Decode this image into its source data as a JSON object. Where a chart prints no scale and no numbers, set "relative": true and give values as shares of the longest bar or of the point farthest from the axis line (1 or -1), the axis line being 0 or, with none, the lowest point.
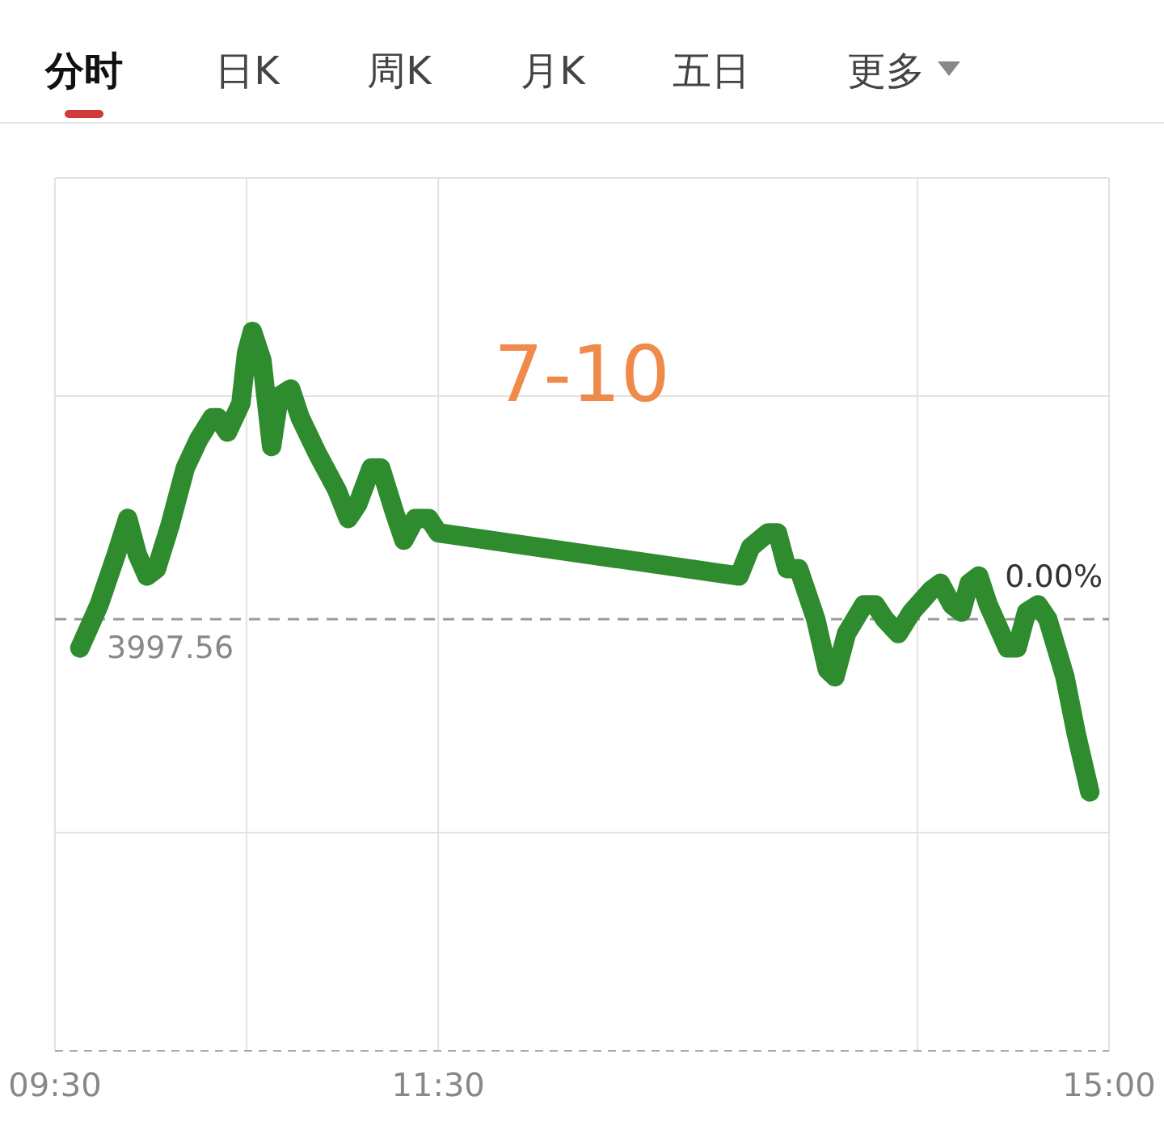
{
  "chart_data": {
    "type": "line",
    "relative": true,
    "color": "#2e8b2e",
    "line_style": "solid",
    "marker": "none",
    "grid": true,
    "x": [
      9.63,
      9.73,
      9.82,
      9.88,
      9.93,
      9.98,
      10.03,
      10.1,
      10.18,
      10.25,
      10.32,
      10.35,
      10.4,
      10.47,
      10.5,
      10.53,
      10.58,
      10.63,
      10.67,
      10.73,
      10.78,
      10.87,
      10.97,
      11.03,
      11.08,
      11.15,
      11.2,
      11.27,
      11.32,
      11.38,
      11.45,
      11.5,
      13.07,
      13.13,
      13.22,
      13.27,
      13.32,
      13.38,
      13.47,
      13.53,
      13.57,
      13.63,
      13.72,
      13.78,
      13.83,
      13.9,
      13.97,
      14.07,
      14.12,
      14.18,
      14.23,
      14.27,
      14.32,
      14.37,
      14.47,
      14.52,
      14.57,
      14.63,
      14.68,
      14.77,
      14.83,
      14.9
    ],
    "values": [
      0.56,
      0.62,
      0.69,
      0.74,
      0.69,
      0.66,
      0.67,
      0.73,
      0.81,
      0.85,
      0.88,
      0.88,
      0.86,
      0.9,
      0.97,
      1.0,
      0.96,
      0.84,
      0.91,
      0.92,
      0.88,
      0.83,
      0.78,
      0.74,
      0.76,
      0.81,
      0.81,
      0.75,
      0.71,
      0.74,
      0.74,
      0.72,
      0.66,
      0.7,
      0.72,
      0.72,
      0.67,
      0.67,
      0.6,
      0.53,
      0.52,
      0.58,
      0.62,
      0.62,
      0.6,
      0.58,
      0.61,
      0.64,
      0.65,
      0.62,
      0.61,
      0.65,
      0.66,
      0.62,
      0.56,
      0.56,
      0.61,
      0.62,
      0.6,
      0.52,
      0.44,
      0.36
    ],
    "xlim": [
      9.5,
      15
    ],
    "xticks": [
      {
        "value": 9.5,
        "label": "09:30"
      },
      {
        "value": 10.5,
        "label": null
      },
      {
        "value": 11.5,
        "label": "11:30"
      },
      {
        "value": 14,
        "label": null
      },
      {
        "value": 15,
        "label": "15:00"
      }
    ],
    "ref_lines": [
      {
        "axis": "y",
        "value": 0.6,
        "color": "#999999",
        "line_style": "dashed"
      }
    ],
    "annotations": [
      "分时",
      "日K",
      "周K",
      "月K",
      "五日",
      "更多",
      "7-10",
      "0.00%",
      "3997.56"
    ]
  }
}
